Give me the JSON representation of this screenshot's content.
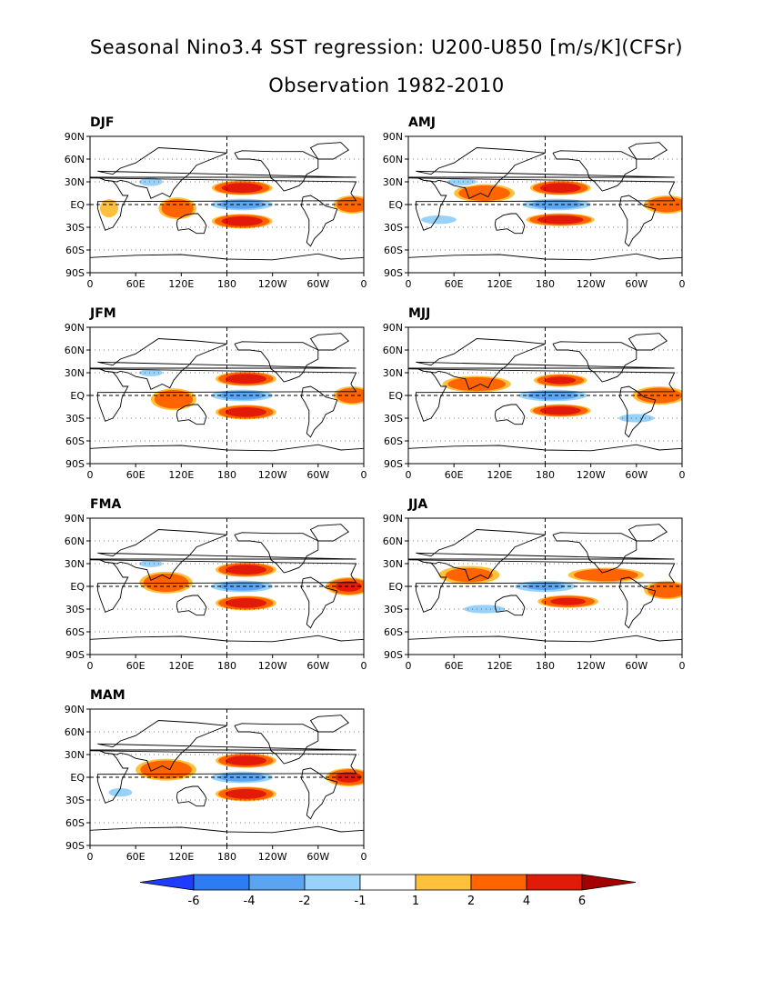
{
  "header": {
    "title": "Seasonal Nino3.4 SST regression: U200-U850 [m/s/K](CFSr)",
    "subtitle": "Observation 1982-2010"
  },
  "axes": {
    "lat_labels": [
      "90N",
      "60N",
      "30N",
      "EQ",
      "30S",
      "60S",
      "90S"
    ],
    "lon_labels": [
      "0",
      "60E",
      "120E",
      "180",
      "120W",
      "60W",
      "0"
    ]
  },
  "colorbar": {
    "levels": [
      "-6",
      "-4",
      "-2",
      "-1",
      "1",
      "2",
      "4",
      "6"
    ],
    "colors": [
      "#1e3cff",
      "#2e7cf2",
      "#5aa4f2",
      "#98d2fa",
      "#ffffff",
      "#ffc03c",
      "#ff6400",
      "#e11a0a",
      "#a50000"
    ]
  },
  "chart_data": [
    {
      "type": "heatmap",
      "title": "DJF",
      "xlim": [
        0,
        360
      ],
      "ylim": [
        -90,
        90
      ],
      "blobs": [
        {
          "lon": 200,
          "lat": 0,
          "rlon": 45,
          "rlat": 7,
          "value": -5
        },
        {
          "lon": 200,
          "lat": 22,
          "rlon": 40,
          "rlat": 8,
          "value": 5
        },
        {
          "lon": 200,
          "lat": -22,
          "rlon": 40,
          "rlat": 8,
          "value": 5
        },
        {
          "lon": 115,
          "lat": -5,
          "rlon": 25,
          "rlat": 12,
          "value": 3
        },
        {
          "lon": 345,
          "lat": 0,
          "rlon": 25,
          "rlat": 10,
          "value": 3
        },
        {
          "lon": 80,
          "lat": 30,
          "rlon": 20,
          "rlat": 6,
          "value": -2
        },
        {
          "lon": 25,
          "lat": -5,
          "rlon": 12,
          "rlat": 10,
          "value": 1.5
        }
      ]
    },
    {
      "type": "heatmap",
      "title": "AMJ",
      "xlim": [
        0,
        360
      ],
      "ylim": [
        -90,
        90
      ],
      "blobs": [
        {
          "lon": 195,
          "lat": 0,
          "rlon": 50,
          "rlat": 7,
          "value": -5
        },
        {
          "lon": 200,
          "lat": 22,
          "rlon": 40,
          "rlat": 8,
          "value": 5
        },
        {
          "lon": 200,
          "lat": -20,
          "rlon": 45,
          "rlat": 7,
          "value": 5
        },
        {
          "lon": 100,
          "lat": 15,
          "rlon": 40,
          "rlat": 10,
          "value": 3
        },
        {
          "lon": 340,
          "lat": 0,
          "rlon": 30,
          "rlat": 10,
          "value": 3
        },
        {
          "lon": 40,
          "lat": -20,
          "rlon": 30,
          "rlat": 6,
          "value": -2
        },
        {
          "lon": 70,
          "lat": 30,
          "rlon": 25,
          "rlat": 5,
          "value": -2
        }
      ]
    },
    {
      "type": "heatmap",
      "title": "JFM",
      "xlim": [
        0,
        360
      ],
      "ylim": [
        -90,
        90
      ],
      "blobs": [
        {
          "lon": 200,
          "lat": 0,
          "rlon": 45,
          "rlat": 7,
          "value": -5
        },
        {
          "lon": 205,
          "lat": 22,
          "rlon": 40,
          "rlat": 8,
          "value": 5
        },
        {
          "lon": 205,
          "lat": -22,
          "rlon": 40,
          "rlat": 8,
          "value": 5
        },
        {
          "lon": 110,
          "lat": -5,
          "rlon": 30,
          "rlat": 12,
          "value": 3
        },
        {
          "lon": 345,
          "lat": 0,
          "rlon": 25,
          "rlat": 10,
          "value": 3
        },
        {
          "lon": 80,
          "lat": 30,
          "rlon": 20,
          "rlat": 5,
          "value": -2
        }
      ]
    },
    {
      "type": "heatmap",
      "title": "MJJ",
      "xlim": [
        0,
        360
      ],
      "ylim": [
        -90,
        90
      ],
      "blobs": [
        {
          "lon": 190,
          "lat": 0,
          "rlon": 50,
          "rlat": 7,
          "value": -5
        },
        {
          "lon": 200,
          "lat": 20,
          "rlon": 35,
          "rlat": 7,
          "value": 4
        },
        {
          "lon": 200,
          "lat": -20,
          "rlon": 40,
          "rlat": 7,
          "value": 5
        },
        {
          "lon": 90,
          "lat": 15,
          "rlon": 45,
          "rlat": 9,
          "value": 3
        },
        {
          "lon": 330,
          "lat": 0,
          "rlon": 35,
          "rlat": 10,
          "value": 3
        },
        {
          "lon": 300,
          "lat": -30,
          "rlon": 30,
          "rlat": 6,
          "value": -2
        }
      ]
    },
    {
      "type": "heatmap",
      "title": "FMA",
      "xlim": [
        0,
        360
      ],
      "ylim": [
        -90,
        90
      ],
      "blobs": [
        {
          "lon": 200,
          "lat": 0,
          "rlon": 45,
          "rlat": 7,
          "value": -5
        },
        {
          "lon": 205,
          "lat": 22,
          "rlon": 40,
          "rlat": 8,
          "value": 5
        },
        {
          "lon": 205,
          "lat": -22,
          "rlon": 40,
          "rlat": 8,
          "value": 5
        },
        {
          "lon": 100,
          "lat": 5,
          "rlon": 35,
          "rlat": 12,
          "value": 3
        },
        {
          "lon": 340,
          "lat": 0,
          "rlon": 30,
          "rlat": 10,
          "value": 4
        },
        {
          "lon": 80,
          "lat": 30,
          "rlon": 20,
          "rlat": 5,
          "value": -2
        }
      ]
    },
    {
      "type": "heatmap",
      "title": "JJA",
      "xlim": [
        0,
        360
      ],
      "ylim": [
        -90,
        90
      ],
      "blobs": [
        {
          "lon": 180,
          "lat": 0,
          "rlon": 45,
          "rlat": 7,
          "value": -4
        },
        {
          "lon": 210,
          "lat": -20,
          "rlon": 40,
          "rlat": 7,
          "value": 4
        },
        {
          "lon": 260,
          "lat": 15,
          "rlon": 50,
          "rlat": 8,
          "value": 3
        },
        {
          "lon": 80,
          "lat": 15,
          "rlon": 40,
          "rlat": 10,
          "value": 2
        },
        {
          "lon": 340,
          "lat": -5,
          "rlon": 30,
          "rlat": 10,
          "value": 3
        },
        {
          "lon": 100,
          "lat": -30,
          "rlon": 35,
          "rlat": 6,
          "value": -2
        }
      ]
    },
    {
      "type": "heatmap",
      "title": "MAM",
      "xlim": [
        0,
        360
      ],
      "ylim": [
        -90,
        90
      ],
      "blobs": [
        {
          "lon": 200,
          "lat": 0,
          "rlon": 45,
          "rlat": 7,
          "value": -5
        },
        {
          "lon": 205,
          "lat": 22,
          "rlon": 40,
          "rlat": 8,
          "value": 5
        },
        {
          "lon": 205,
          "lat": -22,
          "rlon": 40,
          "rlat": 8,
          "value": 5
        },
        {
          "lon": 100,
          "lat": 10,
          "rlon": 40,
          "rlat": 12,
          "value": 3
        },
        {
          "lon": 340,
          "lat": 0,
          "rlon": 30,
          "rlat": 10,
          "value": 4
        },
        {
          "lon": 40,
          "lat": -20,
          "rlon": 20,
          "rlat": 6,
          "value": -2
        }
      ]
    }
  ]
}
